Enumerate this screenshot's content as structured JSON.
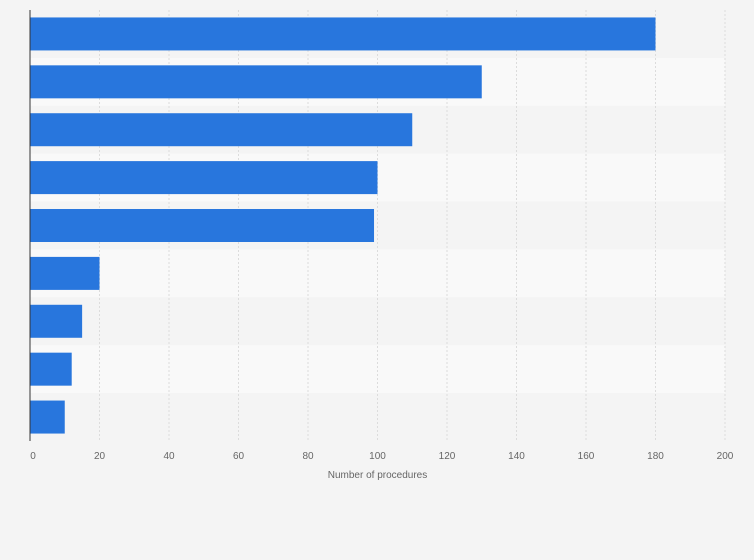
{
  "chart_data": {
    "type": "bar",
    "orientation": "horizontal",
    "categories": [
      "",
      "",
      "",
      "",
      "",
      "",
      "",
      "",
      ""
    ],
    "values": [
      180,
      130,
      110,
      100,
      99,
      20,
      15,
      12,
      10
    ],
    "title": "",
    "xlabel": "Number of procedures",
    "ylabel": "",
    "xlim": [
      0,
      200
    ],
    "xticks": [
      0,
      20,
      40,
      60,
      80,
      100,
      120,
      140,
      160,
      180,
      200
    ],
    "grid": true,
    "legend": "none"
  },
  "colors": {
    "bar": "#2876dd",
    "background": "#f4f4f4",
    "band_even": "#f4f4f4",
    "band_odd": "#f9f9f9",
    "grid": "#dcdcdc",
    "axis": "#333333",
    "text": "#666666"
  }
}
